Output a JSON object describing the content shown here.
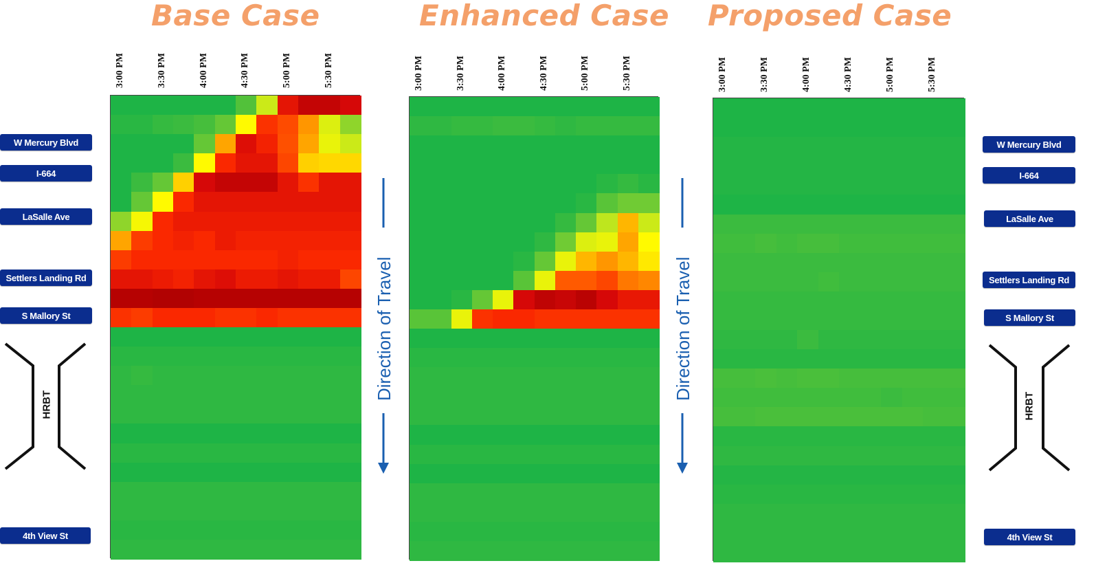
{
  "titles": [
    "Base Case",
    "Enhanced Case",
    "Proposed Case"
  ],
  "direction_label": "Direction of Travel",
  "tunnel_label": "HRBT",
  "locations": {
    "w_mercury": "W Mercury Blvd",
    "i664": "I-664",
    "lasalle": "LaSalle Ave",
    "settlers": "Settlers Landing Rd",
    "mallory": "S Mallory St",
    "fourth_view": "4th View St"
  },
  "colors": {
    "title": "#f4a06a",
    "label_box": "#0b2d8e",
    "arrow": "#1a5fb0"
  },
  "chart_data": [
    {
      "type": "heatmap",
      "title": "Base Case",
      "x": [
        "3:00 PM",
        "",
        "3:30 PM",
        "",
        "4:00 PM",
        "",
        "4:30 PM",
        "",
        "5:00 PM",
        "",
        "5:30 PM",
        ""
      ],
      "tick_labels": [
        "3:00 PM",
        "3:30 PM",
        "4:00 PM",
        "4:30 PM",
        "5:00 PM",
        "5:30 PM"
      ],
      "color_scale": "speed: 0 = dark red (congested), 1 = green (free flow)",
      "values": [
        [
          1,
          1,
          1,
          1,
          1,
          1,
          0.9,
          0.62,
          0.14,
          0.06,
          0.06,
          0.1
        ],
        [
          0.98,
          0.98,
          0.96,
          0.95,
          0.93,
          0.85,
          0.5,
          0.22,
          0.27,
          0.38,
          0.58,
          0.75
        ],
        [
          1,
          1,
          1,
          1,
          0.85,
          0.4,
          0.12,
          0.18,
          0.28,
          0.4,
          0.55,
          0.62
        ],
        [
          1,
          1,
          1,
          0.95,
          0.5,
          0.2,
          0.14,
          0.14,
          0.26,
          0.45,
          0.46,
          0.46
        ],
        [
          1,
          0.95,
          0.85,
          0.45,
          0.1,
          0.06,
          0.06,
          0.06,
          0.14,
          0.22,
          0.14,
          0.14
        ],
        [
          1,
          0.85,
          0.5,
          0.2,
          0.14,
          0.14,
          0.14,
          0.14,
          0.14,
          0.14,
          0.14,
          0.14
        ],
        [
          0.75,
          0.52,
          0.2,
          0.16,
          0.16,
          0.16,
          0.16,
          0.16,
          0.16,
          0.16,
          0.16,
          0.16
        ],
        [
          0.4,
          0.24,
          0.2,
          0.18,
          0.2,
          0.16,
          0.18,
          0.18,
          0.18,
          0.18,
          0.18,
          0.18
        ],
        [
          0.24,
          0.2,
          0.2,
          0.2,
          0.2,
          0.2,
          0.2,
          0.2,
          0.18,
          0.2,
          0.2,
          0.2
        ],
        [
          0.14,
          0.14,
          0.16,
          0.18,
          0.14,
          0.12,
          0.16,
          0.16,
          0.14,
          0.16,
          0.16,
          0.26
        ],
        [
          0.03,
          0.03,
          0.02,
          0.02,
          0.03,
          0.03,
          0.03,
          0.03,
          0.03,
          0.03,
          0.03,
          0.03
        ],
        [
          0.22,
          0.24,
          0.2,
          0.2,
          0.2,
          0.22,
          0.22,
          0.2,
          0.22,
          0.22,
          0.22,
          0.22
        ],
        [
          1,
          1,
          1,
          1,
          1,
          1,
          1,
          1,
          1,
          1,
          1,
          1
        ],
        [
          0.98,
          0.98,
          0.98,
          0.98,
          0.98,
          0.98,
          0.98,
          0.98,
          0.98,
          0.98,
          0.98,
          0.98
        ],
        [
          0.97,
          0.96,
          0.97,
          0.97,
          0.97,
          0.97,
          0.97,
          0.97,
          0.97,
          0.97,
          0.97,
          0.97
        ],
        [
          0.97,
          0.97,
          0.97,
          0.97,
          0.97,
          0.97,
          0.97,
          0.97,
          0.97,
          0.97,
          0.97,
          0.97
        ],
        [
          0.97,
          0.97,
          0.97,
          0.97,
          0.97,
          0.97,
          0.97,
          0.97,
          0.97,
          0.97,
          0.97,
          0.97
        ],
        [
          1,
          1,
          1,
          1,
          1,
          1,
          1,
          1,
          1,
          1,
          1,
          1
        ],
        [
          0.98,
          0.98,
          0.98,
          0.98,
          0.98,
          0.98,
          0.98,
          0.98,
          0.98,
          0.98,
          0.98,
          0.98
        ],
        [
          1,
          1,
          1,
          1,
          1,
          1,
          1,
          1,
          1,
          1,
          1,
          1
        ],
        [
          0.97,
          0.97,
          0.97,
          0.97,
          0.97,
          0.97,
          0.97,
          0.97,
          0.97,
          0.97,
          0.97,
          0.97
        ],
        [
          0.97,
          0.97,
          0.97,
          0.97,
          0.97,
          0.97,
          0.97,
          0.97,
          0.97,
          0.97,
          0.97,
          0.97
        ],
        [
          0.98,
          0.98,
          0.98,
          0.98,
          0.98,
          0.98,
          0.98,
          0.98,
          0.98,
          0.98,
          0.98,
          0.98
        ],
        [
          0.97,
          0.97,
          0.97,
          0.97,
          0.97,
          0.97,
          0.97,
          0.97,
          0.97,
          0.97,
          0.97,
          0.97
        ]
      ]
    },
    {
      "type": "heatmap",
      "title": "Enhanced Case",
      "x": [
        "3:00 PM",
        "",
        "3:30 PM",
        "",
        "4:00 PM",
        "",
        "4:30 PM",
        "",
        "5:00 PM",
        "",
        "5:30 PM",
        ""
      ],
      "tick_labels": [
        "3:00 PM",
        "3:30 PM",
        "4:00 PM",
        "4:30 PM",
        "5:00 PM",
        "5:30 PM"
      ],
      "color_scale": "speed: 0 = dark red (congested), 1 = green (free flow)",
      "values": [
        [
          1,
          1,
          1,
          1,
          1,
          1,
          1,
          1,
          1,
          1,
          1,
          1
        ],
        [
          0.97,
          0.97,
          0.96,
          0.96,
          0.95,
          0.95,
          0.96,
          0.97,
          0.96,
          0.96,
          0.96,
          0.96
        ],
        [
          1,
          1,
          1,
          1,
          1,
          1,
          1,
          1,
          1,
          1,
          1,
          1
        ],
        [
          1,
          1,
          1,
          1,
          1,
          1,
          1,
          1,
          1,
          1,
          1,
          1
        ],
        [
          1,
          1,
          1,
          1,
          1,
          1,
          1,
          1,
          1,
          0.98,
          0.96,
          0.98
        ],
        [
          1,
          1,
          1,
          1,
          1,
          1,
          1,
          1,
          0.98,
          0.88,
          0.82,
          0.82
        ],
        [
          1,
          1,
          1,
          1,
          1,
          1,
          1,
          0.96,
          0.85,
          0.65,
          0.42,
          0.62
        ],
        [
          1,
          1,
          1,
          1,
          1,
          1,
          0.97,
          0.82,
          0.58,
          0.55,
          0.4,
          0.5
        ],
        [
          1,
          1,
          1,
          1,
          1,
          0.98,
          0.85,
          0.55,
          0.42,
          0.38,
          0.42,
          0.48
        ],
        [
          1,
          1,
          1,
          1,
          1,
          0.88,
          0.55,
          0.3,
          0.3,
          0.26,
          0.34,
          0.36
        ],
        [
          1,
          1,
          0.98,
          0.85,
          0.55,
          0.1,
          0.05,
          0.07,
          0.04,
          0.1,
          0.15,
          0.15
        ],
        [
          0.88,
          0.88,
          0.55,
          0.22,
          0.2,
          0.2,
          0.22,
          0.22,
          0.22,
          0.22,
          0.22,
          0.22
        ],
        [
          1,
          1,
          1,
          1,
          1,
          1,
          1,
          1,
          1,
          1,
          1,
          1
        ],
        [
          0.98,
          0.98,
          0.98,
          0.98,
          0.98,
          0.98,
          0.98,
          0.98,
          0.98,
          0.98,
          0.98,
          0.98
        ],
        [
          0.97,
          0.97,
          0.97,
          0.97,
          0.97,
          0.97,
          0.97,
          0.97,
          0.97,
          0.97,
          0.97,
          0.97
        ],
        [
          0.97,
          0.97,
          0.97,
          0.97,
          0.97,
          0.97,
          0.97,
          0.97,
          0.97,
          0.97,
          0.97,
          0.97
        ],
        [
          0.97,
          0.97,
          0.97,
          0.97,
          0.97,
          0.97,
          0.97,
          0.97,
          0.97,
          0.97,
          0.97,
          0.97
        ],
        [
          1,
          1,
          1,
          1,
          1,
          1,
          1,
          1,
          1,
          1,
          1,
          1
        ],
        [
          0.98,
          0.98,
          0.98,
          0.98,
          0.98,
          0.98,
          0.98,
          0.98,
          0.98,
          0.98,
          0.98,
          0.98
        ],
        [
          1,
          1,
          1,
          1,
          1,
          1,
          1,
          1,
          1,
          1,
          1,
          1
        ],
        [
          0.97,
          0.97,
          0.97,
          0.97,
          0.97,
          0.97,
          0.97,
          0.97,
          0.97,
          0.97,
          0.97,
          0.97
        ],
        [
          0.97,
          0.97,
          0.97,
          0.97,
          0.97,
          0.97,
          0.97,
          0.97,
          0.97,
          0.97,
          0.97,
          0.97
        ],
        [
          0.98,
          0.98,
          0.98,
          0.98,
          0.98,
          0.98,
          0.98,
          0.98,
          0.98,
          0.98,
          0.98,
          0.98
        ],
        [
          0.97,
          0.97,
          0.97,
          0.97,
          0.97,
          0.97,
          0.97,
          0.97,
          0.97,
          0.97,
          0.97,
          0.97
        ]
      ]
    },
    {
      "type": "heatmap",
      "title": "Proposed Case",
      "x": [
        "3:00 PM",
        "",
        "3:30 PM",
        "",
        "4:00 PM",
        "",
        "4:30 PM",
        "",
        "5:00 PM",
        "",
        "5:30 PM",
        ""
      ],
      "tick_labels": [
        "3:00 PM",
        "3:30 PM",
        "4:00 PM",
        "4:30 PM",
        "5:00 PM",
        "5:30 PM"
      ],
      "color_scale": "speed: 0 = dark red (congested), 1 = green (free flow)",
      "values": [
        [
          1,
          1,
          1,
          1,
          1,
          1,
          1,
          1,
          1,
          1,
          1,
          1
        ],
        [
          1,
          1,
          1,
          1,
          1,
          1,
          1,
          1,
          1,
          1,
          1,
          1
        ],
        [
          0.99,
          0.99,
          0.99,
          0.99,
          0.99,
          0.99,
          0.99,
          0.99,
          0.99,
          0.99,
          0.99,
          0.99
        ],
        [
          0.99,
          0.99,
          0.99,
          0.99,
          0.99,
          0.99,
          0.99,
          0.99,
          0.99,
          0.99,
          0.99,
          0.99
        ],
        [
          0.99,
          0.99,
          0.99,
          0.99,
          0.99,
          0.99,
          0.99,
          0.99,
          0.99,
          0.99,
          0.99,
          0.99
        ],
        [
          1,
          1,
          1,
          1,
          1,
          1,
          1,
          1,
          1,
          1,
          1,
          1
        ],
        [
          0.95,
          0.95,
          0.95,
          0.95,
          0.95,
          0.95,
          0.95,
          0.95,
          0.95,
          0.95,
          0.95,
          0.95
        ],
        [
          0.94,
          0.94,
          0.93,
          0.94,
          0.93,
          0.93,
          0.94,
          0.94,
          0.94,
          0.94,
          0.94,
          0.94
        ],
        [
          0.95,
          0.95,
          0.95,
          0.95,
          0.95,
          0.95,
          0.95,
          0.95,
          0.95,
          0.95,
          0.95,
          0.95
        ],
        [
          0.95,
          0.95,
          0.95,
          0.95,
          0.95,
          0.94,
          0.95,
          0.95,
          0.95,
          0.95,
          0.95,
          0.95
        ],
        [
          0.96,
          0.96,
          0.96,
          0.96,
          0.96,
          0.96,
          0.96,
          0.96,
          0.96,
          0.96,
          0.96,
          0.96
        ],
        [
          0.96,
          0.96,
          0.96,
          0.96,
          0.96,
          0.96,
          0.96,
          0.96,
          0.96,
          0.96,
          0.96,
          0.96
        ],
        [
          0.97,
          0.97,
          0.97,
          0.97,
          0.95,
          0.97,
          0.97,
          0.97,
          0.97,
          0.97,
          0.97,
          0.97
        ],
        [
          0.98,
          0.98,
          0.98,
          0.98,
          0.98,
          0.98,
          0.98,
          0.98,
          0.98,
          0.98,
          0.98,
          0.98
        ],
        [
          0.93,
          0.93,
          0.92,
          0.93,
          0.92,
          0.92,
          0.93,
          0.93,
          0.93,
          0.93,
          0.93,
          0.93
        ],
        [
          0.94,
          0.94,
          0.94,
          0.94,
          0.94,
          0.94,
          0.94,
          0.94,
          0.95,
          0.94,
          0.94,
          0.94
        ],
        [
          0.93,
          0.93,
          0.92,
          0.92,
          0.92,
          0.92,
          0.92,
          0.92,
          0.92,
          0.92,
          0.93,
          0.93
        ],
        [
          0.98,
          0.98,
          0.98,
          0.98,
          0.98,
          0.98,
          0.98,
          0.98,
          0.98,
          0.98,
          0.98,
          0.98
        ],
        [
          0.97,
          0.97,
          0.97,
          0.97,
          0.97,
          0.97,
          0.97,
          0.97,
          0.97,
          0.97,
          0.97,
          0.97
        ],
        [
          0.99,
          0.99,
          0.99,
          0.99,
          0.99,
          0.99,
          0.99,
          0.99,
          0.99,
          0.99,
          0.99,
          0.99
        ],
        [
          0.98,
          0.98,
          0.98,
          0.98,
          0.98,
          0.98,
          0.98,
          0.98,
          0.98,
          0.98,
          0.98,
          0.98
        ],
        [
          0.97,
          0.97,
          0.97,
          0.97,
          0.97,
          0.97,
          0.97,
          0.97,
          0.97,
          0.97,
          0.97,
          0.97
        ],
        [
          0.97,
          0.97,
          0.97,
          0.97,
          0.97,
          0.97,
          0.97,
          0.97,
          0.97,
          0.97,
          0.97,
          0.97
        ],
        [
          0.97,
          0.97,
          0.97,
          0.97,
          0.97,
          0.97,
          0.97,
          0.97,
          0.97,
          0.97,
          0.97,
          0.97
        ]
      ]
    }
  ]
}
